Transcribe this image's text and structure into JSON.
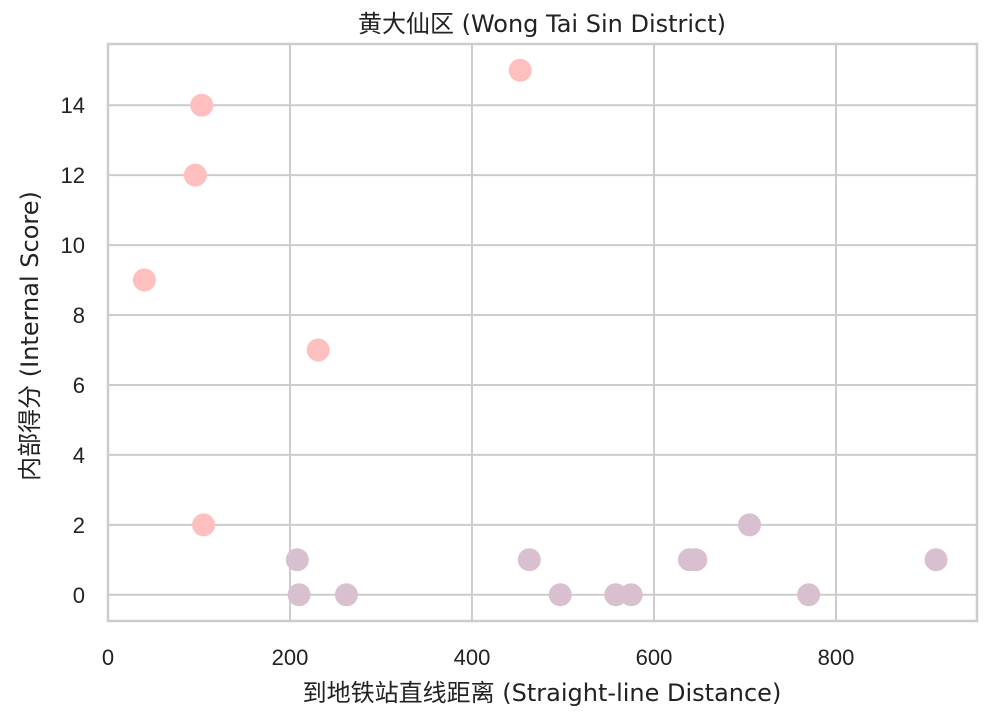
{
  "chart_data": {
    "type": "scatter",
    "title": "黄大仙区 (Wong Tai Sin District)",
    "xlabel": "到地铁站直线距离 (Straight-line Distance)",
    "ylabel": "内部得分 (Internal Score)",
    "xlim": [
      0,
      955
    ],
    "ylim": [
      -0.75,
      15.75
    ],
    "xticks": [
      0,
      200,
      400,
      600,
      800
    ],
    "yticks": [
      0,
      2,
      4,
      6,
      8,
      10,
      12,
      14
    ],
    "grid": true,
    "legend": "none",
    "colors": {
      "high": "#ffbfbf",
      "low": "#d9c0d1",
      "grid": "#cccccc",
      "text": "#222222"
    },
    "series": [
      {
        "color": "#ffbfbf",
        "points": [
          {
            "x": 40,
            "y": 9
          },
          {
            "x": 96,
            "y": 12
          },
          {
            "x": 103,
            "y": 14
          },
          {
            "x": 105,
            "y": 2
          },
          {
            "x": 231,
            "y": 7
          },
          {
            "x": 453,
            "y": 15
          }
        ]
      },
      {
        "color": "#d9c0d1",
        "points": [
          {
            "x": 208,
            "y": 1
          },
          {
            "x": 210,
            "y": 0
          },
          {
            "x": 262,
            "y": 0
          },
          {
            "x": 463,
            "y": 1
          },
          {
            "x": 497,
            "y": 0
          },
          {
            "x": 558,
            "y": 0
          },
          {
            "x": 575,
            "y": 0
          },
          {
            "x": 639,
            "y": 1
          },
          {
            "x": 646,
            "y": 1
          },
          {
            "x": 705,
            "y": 2
          },
          {
            "x": 770,
            "y": 0
          },
          {
            "x": 910,
            "y": 1
          }
        ]
      }
    ]
  }
}
